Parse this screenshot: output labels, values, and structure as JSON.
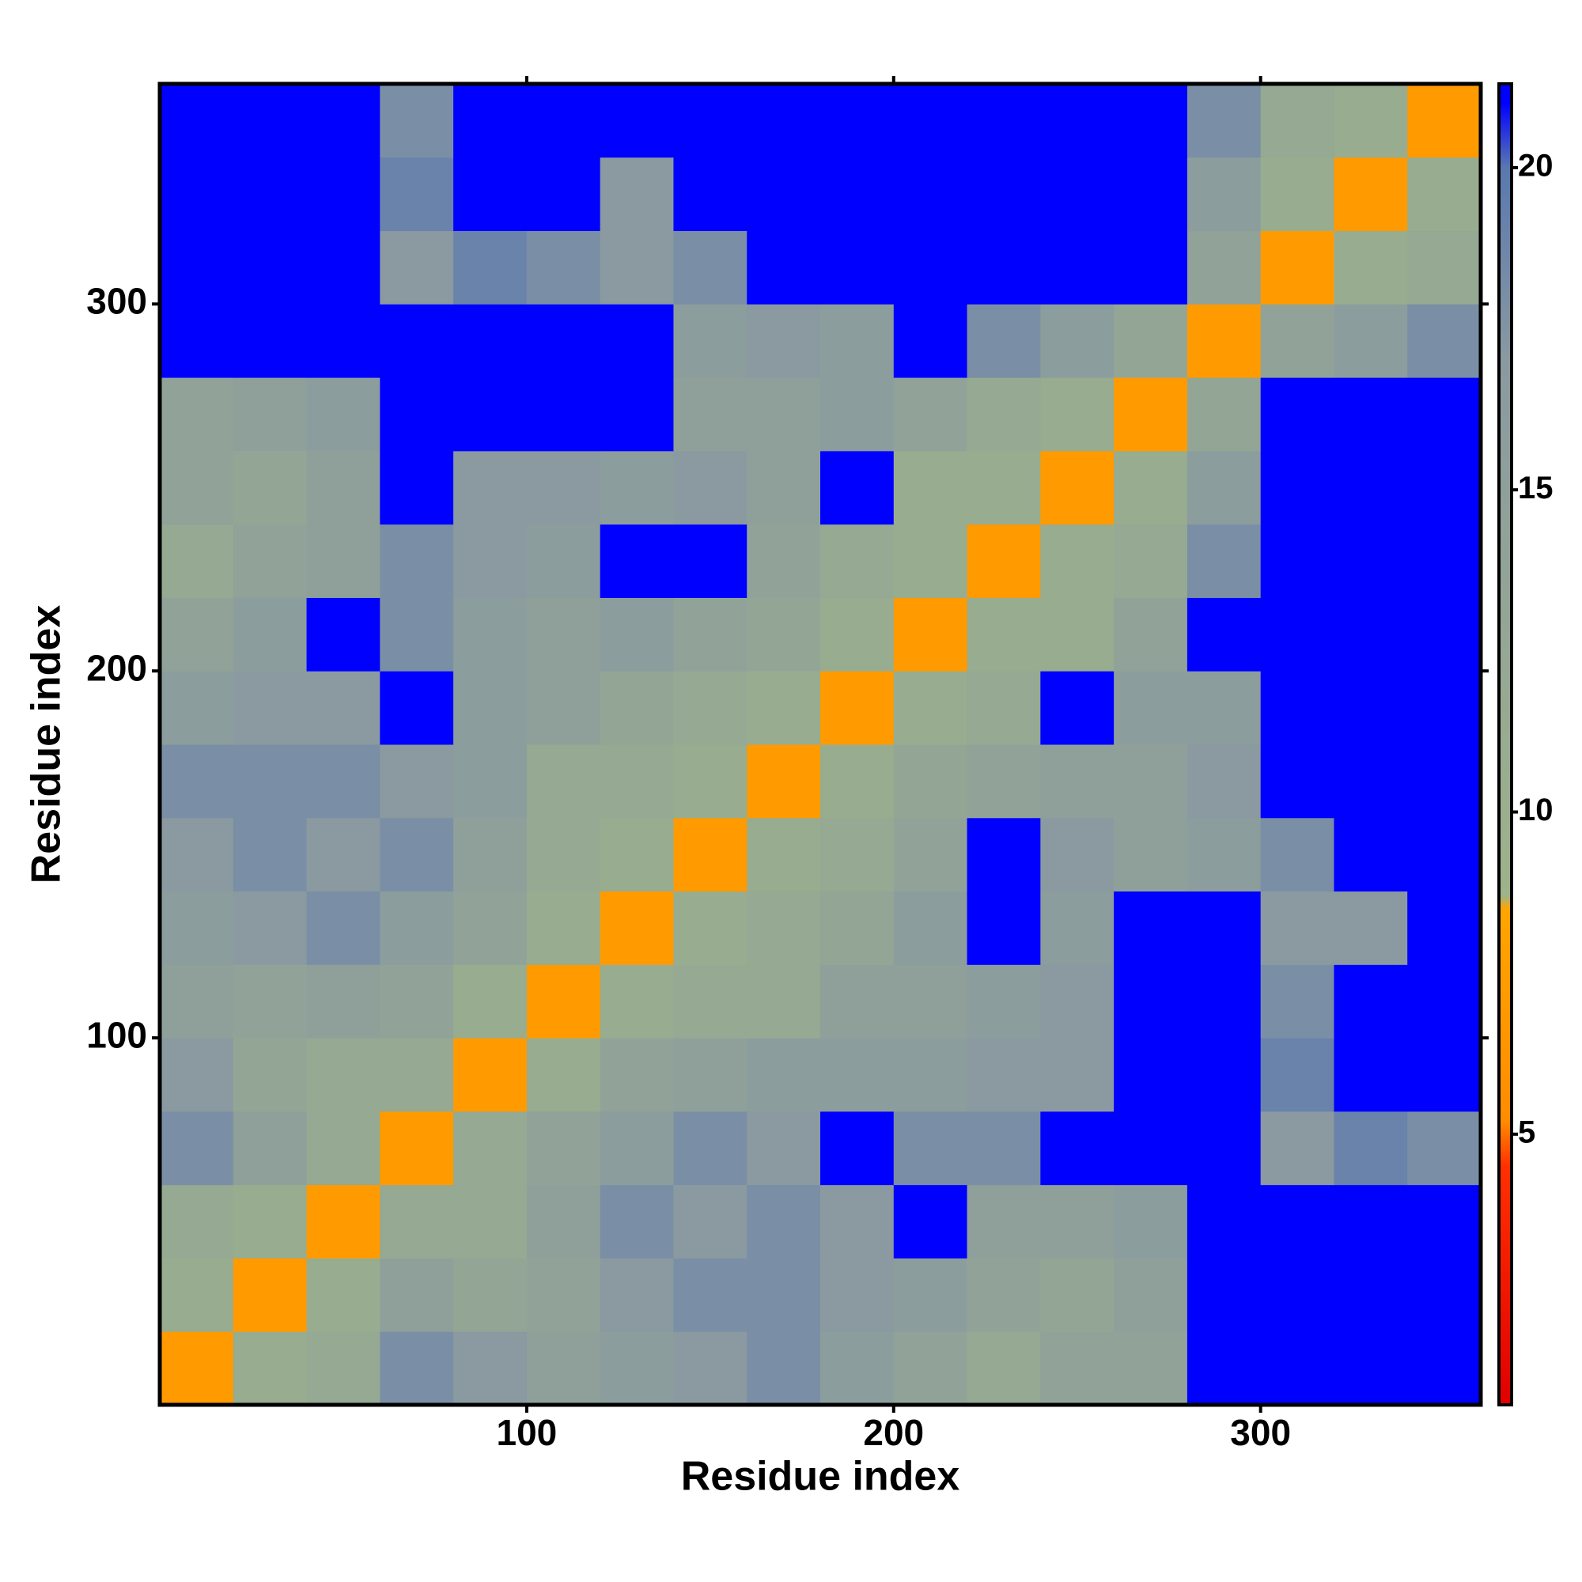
{
  "chart_data": {
    "type": "heatmap",
    "xlabel": "Residue index",
    "ylabel": "Residue index",
    "xbins": [
      0,
      20,
      40,
      60,
      80,
      100,
      120,
      140,
      160,
      180,
      200,
      220,
      240,
      260,
      280,
      300,
      320,
      340,
      360
    ],
    "ybins": [
      0,
      20,
      40,
      60,
      80,
      100,
      120,
      140,
      160,
      180,
      200,
      220,
      240,
      260,
      280,
      300,
      320,
      340,
      360
    ],
    "values": [
      [
        7,
        11,
        12,
        18,
        17,
        15,
        16,
        17,
        18,
        16,
        14,
        12,
        14,
        14,
        21,
        21,
        21,
        21
      ],
      [
        11,
        7,
        11,
        15,
        13,
        14,
        17,
        18,
        18,
        17,
        16,
        14,
        13,
        15,
        21,
        21,
        21,
        21
      ],
      [
        12,
        11,
        7,
        12,
        12,
        15,
        18,
        17,
        18,
        17,
        21,
        15,
        15,
        16,
        21,
        21,
        21,
        21
      ],
      [
        18,
        15,
        12,
        7,
        12,
        14,
        16,
        18,
        17,
        21,
        18,
        18,
        21,
        21,
        21,
        17,
        19,
        18
      ],
      [
        17,
        13,
        12,
        12,
        7,
        11,
        14,
        15,
        16,
        16,
        16,
        17,
        17,
        21,
        21,
        19,
        21,
        21
      ],
      [
        15,
        14,
        15,
        14,
        11,
        7,
        11,
        12,
        12,
        15,
        15,
        16,
        17,
        21,
        21,
        18,
        21,
        21
      ],
      [
        16,
        17,
        18,
        16,
        14,
        11,
        7,
        11,
        12,
        13,
        16,
        21,
        16,
        21,
        21,
        17,
        17,
        21
      ],
      [
        17,
        18,
        17,
        18,
        15,
        12,
        11,
        7,
        11,
        12,
        14,
        21,
        17,
        15,
        16,
        18,
        21,
        21
      ],
      [
        18,
        18,
        18,
        17,
        16,
        12,
        12,
        11,
        7,
        11,
        13,
        14,
        15,
        15,
        17,
        21,
        21,
        21
      ],
      [
        16,
        17,
        17,
        21,
        16,
        15,
        13,
        12,
        11,
        7,
        11,
        12,
        21,
        16,
        16,
        21,
        21,
        21
      ],
      [
        14,
        16,
        21,
        18,
        16,
        15,
        16,
        14,
        13,
        11,
        7,
        11,
        11,
        14,
        21,
        21,
        21,
        21
      ],
      [
        12,
        14,
        15,
        18,
        17,
        16,
        21,
        21,
        14,
        12,
        11,
        7,
        11,
        12,
        18,
        21,
        21,
        21
      ],
      [
        14,
        13,
        15,
        21,
        17,
        17,
        16,
        17,
        15,
        21,
        11,
        11,
        7,
        11,
        16,
        21,
        21,
        21
      ],
      [
        14,
        15,
        16,
        21,
        21,
        21,
        21,
        15,
        15,
        16,
        14,
        12,
        11,
        7,
        13,
        21,
        21,
        21
      ],
      [
        21,
        21,
        21,
        21,
        21,
        21,
        21,
        16,
        17,
        16,
        21,
        18,
        16,
        13,
        7,
        14,
        16,
        18
      ],
      [
        21,
        21,
        21,
        17,
        19,
        18,
        17,
        18,
        21,
        21,
        21,
        21,
        21,
        21,
        14,
        7,
        11,
        12
      ],
      [
        21,
        21,
        21,
        19,
        21,
        21,
        17,
        21,
        21,
        21,
        21,
        21,
        21,
        21,
        16,
        11,
        7,
        11
      ],
      [
        21,
        21,
        21,
        18,
        21,
        21,
        21,
        21,
        21,
        21,
        21,
        21,
        21,
        21,
        18,
        12,
        11,
        7
      ]
    ],
    "xlim": [
      0,
      360
    ],
    "ylim": [
      0,
      360
    ],
    "xticks": [
      100,
      200,
      300
    ],
    "yticks": [
      100,
      200,
      300
    ],
    "clim": [
      0.8,
      21.3
    ],
    "colorbar_ticks": [
      5,
      10,
      15,
      20
    ],
    "colorscale": [
      [
        0.8,
        "#e00000"
      ],
      [
        4.5,
        "#ff3000"
      ],
      [
        5.2,
        "#ff8c00"
      ],
      [
        8.5,
        "#ffa500"
      ],
      [
        8.7,
        "#9db38a"
      ],
      [
        17,
        "#8a9aa0"
      ],
      [
        20,
        "#5a78b0"
      ],
      [
        21,
        "#0000ff"
      ],
      [
        21.3,
        "#0000ff"
      ]
    ]
  }
}
